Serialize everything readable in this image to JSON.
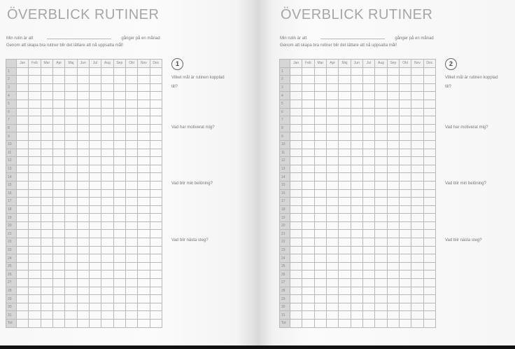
{
  "pages": [
    {
      "title": "ÖVERBLICK RUTINER",
      "line1_pre": "Min rutin är att",
      "line1_post": "gånger på en månad",
      "line2": "Genom att skapa bra rutiner blir det lättare att nå uppsatta mål!",
      "number": "1",
      "questions": [
        "Vilket mål är rutinen kopplad till?",
        "Vad har motiverat mig?",
        "Vad blir min belöning?",
        "Vad blir nästa steg?"
      ]
    },
    {
      "title": "ÖVERBLICK RUTINER",
      "line1_pre": "Min rutin är att",
      "line1_post": "gånger på en månad",
      "line2": "Genom att skapa bra rutiner blir det lättare att nå uppsatta mål!",
      "number": "2",
      "questions": [
        "Vilket mål är rutinen kopplad till?",
        "Vad har motiverat mig?",
        "Vad blir min belöning?",
        "Vad blir nästa steg?"
      ]
    }
  ],
  "months": [
    "Jan",
    "Feb",
    "Mar",
    "Apr",
    "Maj",
    "Jun",
    "Jul",
    "Aug",
    "Sep",
    "Okt",
    "Nov",
    "Dec"
  ],
  "rows": [
    "1",
    "2",
    "3",
    "4",
    "5",
    "6",
    "7",
    "8",
    "9",
    "10",
    "11",
    "12",
    "13",
    "14",
    "15",
    "16",
    "17",
    "18",
    "19",
    "20",
    "21",
    "22",
    "23",
    "24",
    "25",
    "26",
    "27",
    "28",
    "29",
    "30",
    "31",
    "Tot"
  ]
}
